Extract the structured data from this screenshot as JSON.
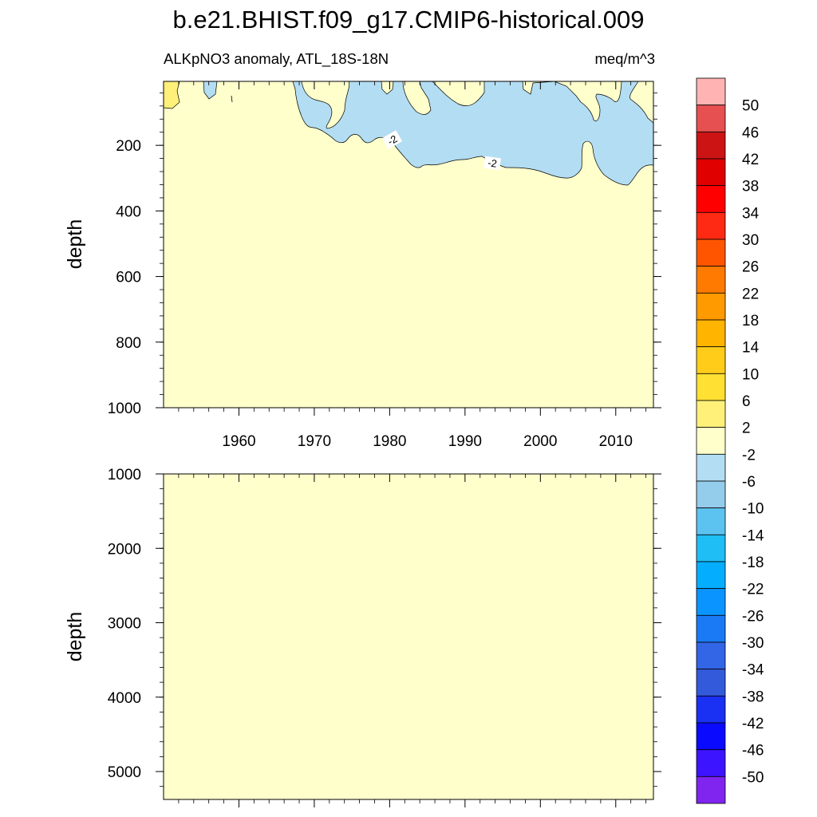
{
  "title": "b.e21.BHIST.f09_g17.CMIP6-historical.009",
  "subtitle_left": "ALKpNO3 anomaly, ATL_18S-18N",
  "subtitle_right": "meq/m^3",
  "contour_labels": [
    "-2",
    "-2"
  ],
  "colors": {
    "background_fill": "#FFFFCC",
    "anomaly_fill": "#B3DDF2",
    "positive_fill": "#FFF07A"
  },
  "chart_data": [
    {
      "type": "heatmap",
      "panel": "upper",
      "xlabel": "",
      "ylabel": "depth",
      "xlim": [
        1950,
        2015
      ],
      "ylim": [
        1000,
        5
      ],
      "x_ticks": [
        1960,
        1970,
        1980,
        1990,
        2000,
        2010
      ],
      "y_ticks": [
        200,
        400,
        600,
        800,
        1000
      ],
      "dominant_range": "-2 to 2",
      "negative_region": {
        "level": "-6 to -2",
        "approx_years": [
          1967,
          2015
        ],
        "approx_max_depth": 320
      }
    },
    {
      "type": "heatmap",
      "panel": "lower",
      "xlabel": "",
      "ylabel": "depth",
      "xlim": [
        1950,
        2015
      ],
      "ylim": [
        5375,
        1000
      ],
      "x_ticks": [
        1960,
        1970,
        1980,
        1990,
        2000,
        2010
      ],
      "y_ticks": [
        1000,
        2000,
        3000,
        4000,
        5000
      ],
      "dominant_range": "-2 to 2"
    }
  ],
  "colorbar": {
    "labels": [
      "50",
      "46",
      "42",
      "38",
      "34",
      "30",
      "26",
      "22",
      "18",
      "14",
      "10",
      "6",
      "2",
      "-2",
      "-6",
      "-10",
      "-14",
      "-18",
      "-22",
      "-26",
      "-30",
      "-34",
      "-38",
      "-42",
      "-46",
      "-50"
    ],
    "colors": [
      "#FFB3B3",
      "#E65050",
      "#CC1414",
      "#E00000",
      "#FF0000",
      "#FF2A14",
      "#FF5500",
      "#FF7A00",
      "#FF9A00",
      "#FFB400",
      "#FFCC1A",
      "#FFE033",
      "#FFF07A",
      "#FFFFCC",
      "#B3DDF2",
      "#94CCEB",
      "#5CC3F0",
      "#1FBEF5",
      "#05ADFF",
      "#0A94FF",
      "#1A7AF5",
      "#3366E6",
      "#335ADB",
      "#1A30F2",
      "#0A0AFF",
      "#3D14FF",
      "#8024F0"
    ]
  }
}
